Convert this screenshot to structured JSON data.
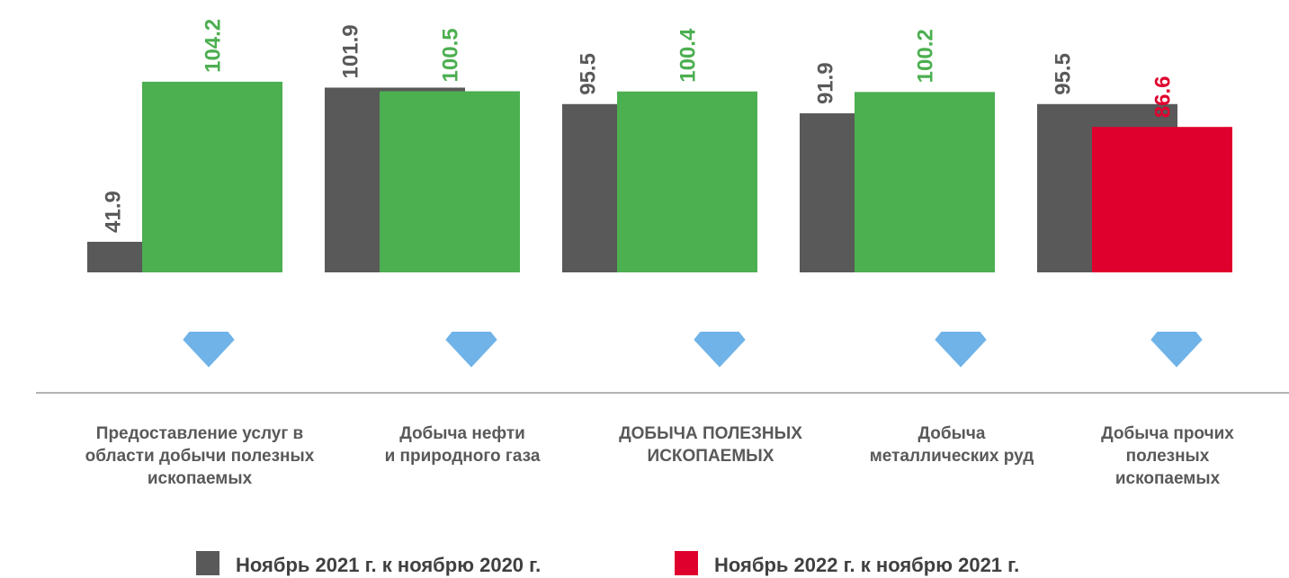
{
  "chart_data": {
    "type": "bar",
    "categories": [
      "Предоставление услуг в\nобласти добычи полезных\nископаемых",
      "Добыча нефти\nи природного газа",
      "ДОБЫЧА ПОЛЕЗНЫХ\nИСКОПАЕМЫХ",
      "Добыча\nметаллических руд",
      "Добыча прочих\nполезных\nископаемых"
    ],
    "series": [
      {
        "name": "Ноябрь 2021 г. к ноябрю 2020 г.",
        "color": "#595959",
        "values": [
          41.9,
          101.9,
          95.5,
          91.9,
          95.5
        ]
      },
      {
        "name": "Ноябрь 2022 г. к ноябрю 2021 г.",
        "color": "#e0002e",
        "point_colors": [
          "#4caf50",
          "#4caf50",
          "#4caf50",
          "#4caf50",
          "#e0002e"
        ],
        "values": [
          104.2,
          100.5,
          100.4,
          100.2,
          86.6
        ]
      }
    ],
    "ylim": [
      30,
      136
    ]
  }
}
